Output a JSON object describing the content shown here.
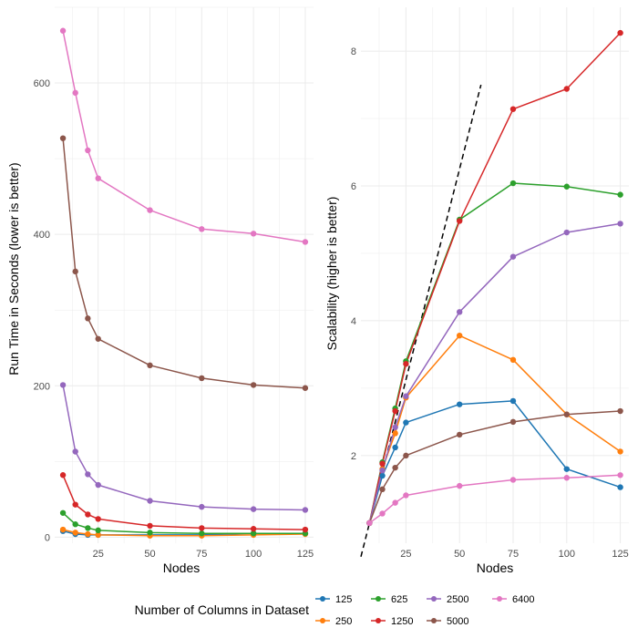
{
  "chart_data": [
    {
      "type": "line",
      "xlabel": "Nodes",
      "ylabel": "Run Time in Seconds (lower is better)",
      "xlim": [
        4,
        129
      ],
      "ylim": [
        -8,
        700
      ],
      "xticks": [
        25,
        50,
        75,
        100,
        125
      ],
      "yticks": [
        0,
        200,
        400,
        600
      ],
      "grid": true,
      "x": [
        8,
        14,
        20,
        25,
        50,
        75,
        100,
        125
      ],
      "series": [
        {
          "name": "125",
          "color": "#1f77b4",
          "values": [
            8,
            4,
            3,
            3,
            3,
            3,
            5,
            5
          ]
        },
        {
          "name": "250",
          "color": "#ff7f0e",
          "values": [
            10,
            6,
            4,
            3,
            2,
            2,
            3,
            4
          ]
        },
        {
          "name": "625",
          "color": "#2ca02c",
          "values": [
            32,
            17,
            12,
            9,
            6,
            5,
            5,
            5
          ]
        },
        {
          "name": "1250",
          "color": "#d62728",
          "values": [
            82,
            43,
            30,
            24,
            15,
            12,
            11,
            10
          ]
        },
        {
          "name": "2500",
          "color": "#9467bd",
          "values": [
            201,
            113,
            83,
            69,
            48,
            40,
            37,
            36
          ]
        },
        {
          "name": "5000",
          "color": "#8c564b",
          "values": [
            527,
            351,
            289,
            262,
            227,
            210,
            201,
            197
          ]
        },
        {
          "name": "6400",
          "color": "#e377c2",
          "values": [
            669,
            587,
            511,
            474,
            432,
            407,
            401,
            390
          ]
        }
      ]
    },
    {
      "type": "line",
      "xlabel": "Nodes",
      "ylabel": "Scalability (higher is better)",
      "xlim": [
        4,
        129
      ],
      "ylim": [
        0.7,
        8.65
      ],
      "xticks": [
        25,
        50,
        75,
        100,
        125
      ],
      "yticks": [
        2,
        4,
        6,
        8
      ],
      "grid": true,
      "reference_line": {
        "style": "dashed",
        "x": [
          4,
          60
        ],
        "y": [
          0.5,
          7.5
        ]
      },
      "x": [
        8,
        14,
        20,
        25,
        50,
        75,
        100,
        125
      ],
      "series": [
        {
          "name": "125",
          "color": "#1f77b4",
          "values": [
            1.0,
            1.7,
            2.12,
            2.49,
            2.76,
            2.81,
            1.8,
            1.53
          ]
        },
        {
          "name": "250",
          "color": "#ff7f0e",
          "values": [
            1.0,
            1.8,
            2.33,
            2.86,
            3.78,
            3.42,
            2.61,
            2.06
          ]
        },
        {
          "name": "625",
          "color": "#2ca02c",
          "values": [
            1.0,
            1.9,
            2.7,
            3.4,
            5.5,
            6.04,
            5.99,
            5.87
          ]
        },
        {
          "name": "1250",
          "color": "#d62728",
          "values": [
            1.0,
            1.88,
            2.66,
            3.36,
            5.48,
            7.14,
            7.44,
            8.27
          ]
        },
        {
          "name": "2500",
          "color": "#9467bd",
          "values": [
            1.0,
            1.78,
            2.42,
            2.88,
            4.13,
            4.95,
            5.31,
            5.44
          ]
        },
        {
          "name": "5000",
          "color": "#8c564b",
          "values": [
            1.0,
            1.5,
            1.82,
            2.0,
            2.31,
            2.5,
            2.61,
            2.66
          ]
        },
        {
          "name": "6400",
          "color": "#e377c2",
          "values": [
            1.0,
            1.14,
            1.3,
            1.41,
            1.55,
            1.64,
            1.67,
            1.71
          ]
        }
      ]
    }
  ],
  "legend": {
    "title": "Number of Columns in Dataset",
    "placement": "bottom",
    "items": [
      {
        "label": "125",
        "color": "#1f77b4"
      },
      {
        "label": "250",
        "color": "#ff7f0e"
      },
      {
        "label": "625",
        "color": "#2ca02c"
      },
      {
        "label": "1250",
        "color": "#d62728"
      },
      {
        "label": "2500",
        "color": "#9467bd"
      },
      {
        "label": "5000",
        "color": "#8c564b"
      },
      {
        "label": "6400",
        "color": "#e377c2"
      }
    ]
  }
}
